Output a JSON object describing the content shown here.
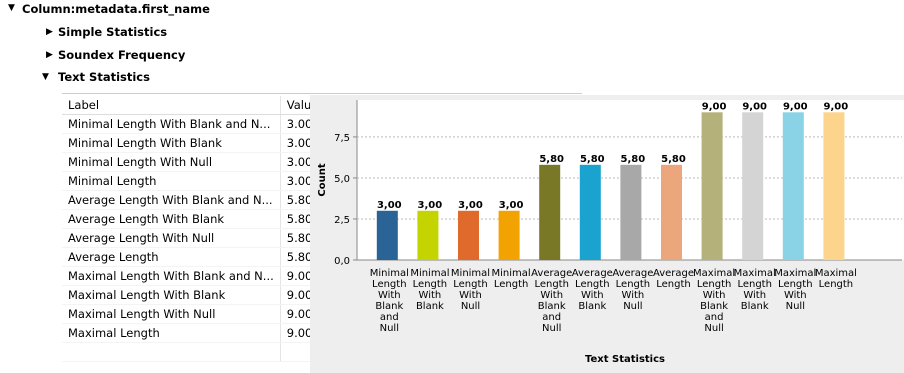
{
  "tree": {
    "root": "Column:metadata.first_name",
    "children": [
      "Simple Statistics",
      "Soundex Frequency",
      "Text Statistics"
    ]
  },
  "table": {
    "columns": [
      "Label",
      "Value"
    ],
    "rows": [
      [
        "Minimal Length With Blank and N...",
        "3.00"
      ],
      [
        "Minimal Length With Blank",
        "3.00"
      ],
      [
        "Minimal Length With Null",
        "3.00"
      ],
      [
        "Minimal Length",
        "3.00"
      ],
      [
        "Average Length With Blank and N...",
        "5.80"
      ],
      [
        "Average Length With Blank",
        "5.80"
      ],
      [
        "Average Length With Null",
        "5.80"
      ],
      [
        "Average Length",
        "5.80"
      ],
      [
        "Maximal Length With Blank and N...",
        "9.00"
      ],
      [
        "Maximal Length With Blank",
        "9.00"
      ],
      [
        "Maximal Length With Null",
        "9.00"
      ],
      [
        "Maximal Length",
        "9.00"
      ]
    ]
  },
  "chart_data": {
    "type": "bar",
    "y_label": "Count",
    "x_label": "Text Statistics",
    "categories": [
      "Minimal Length With Blank and Null",
      "Minimal Length With Blank",
      "Minimal Length With Null",
      "Minimal Length",
      "Average Length With Blank and Null",
      "Average Length With Blank",
      "Average Length With Null",
      "Average Length",
      "Maximal Length With Blank and Null",
      "Maximal Length With Blank",
      "Maximal Length With Null",
      "Maximal Length"
    ],
    "values": [
      3,
      3,
      3,
      3,
      5.8,
      5.8,
      5.8,
      5.8,
      9,
      9,
      9,
      9
    ],
    "value_labels": [
      "3,00",
      "3,00",
      "3,00",
      "3,00",
      "5,80",
      "5,80",
      "5,80",
      "5,80",
      "9,00",
      "9,00",
      "9,00",
      "9,00"
    ],
    "colors": [
      "#2a6496",
      "#c4d400",
      "#e0692c",
      "#f3a301",
      "#787826",
      "#1ba3d0",
      "#a8a8a8",
      "#eba67c",
      "#b5b17a",
      "#d4d4d4",
      "#8ad3e6",
      "#fdd48b"
    ],
    "ylim": [
      0,
      9.75
    ],
    "yticks": [
      {
        "value": 0,
        "label": "0,0"
      },
      {
        "value": 2.5,
        "label": "2,5"
      },
      {
        "value": 5,
        "label": "5,0"
      },
      {
        "value": 7.5,
        "label": "7,5"
      }
    ],
    "grid": true
  }
}
